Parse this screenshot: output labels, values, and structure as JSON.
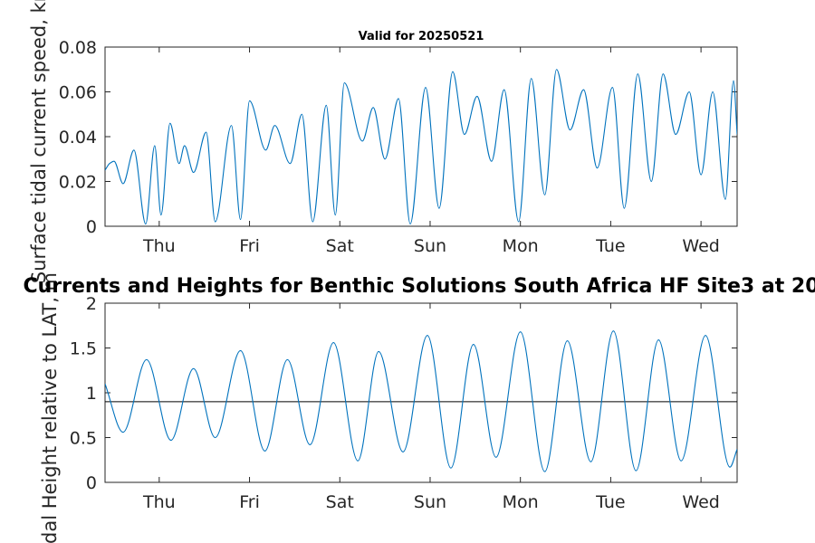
{
  "chart_data": [
    {
      "type": "line",
      "title": "Valid for 20250521",
      "ylabel": "Surface tidal current speed, kn",
      "xlabel": "",
      "xlim": [
        0,
        7
      ],
      "ylim": [
        0,
        0.08
      ],
      "grid": false,
      "xticks": [
        0.6,
        1.6,
        2.6,
        3.6,
        4.6,
        5.6,
        6.6
      ],
      "xtick_labels": [
        "Thu",
        "Fri",
        "Sat",
        "Sun",
        "Mon",
        "Tue",
        "Wed"
      ],
      "yticks": [
        0,
        0.02,
        0.04,
        0.06,
        0.08
      ],
      "ytick_labels": [
        "0",
        "0.02",
        "0.04",
        "0.06",
        "0.08"
      ],
      "line_color": "#0072BD",
      "series": [
        {
          "x": [
            0,
            0.05,
            0.1,
            0.2,
            0.32,
            0.45,
            0.55,
            0.62,
            0.72,
            0.82,
            0.88,
            0.98,
            1.12,
            1.22,
            1.4,
            1.5,
            1.6,
            1.78,
            1.88,
            2.05,
            2.18,
            2.3,
            2.45,
            2.55,
            2.65,
            2.85,
            2.97,
            3.1,
            3.25,
            3.38,
            3.55,
            3.7,
            3.85,
            3.98,
            4.12,
            4.28,
            4.42,
            4.58,
            4.72,
            4.87,
            5.0,
            5.15,
            5.3,
            5.45,
            5.62,
            5.75,
            5.9,
            6.05,
            6.18,
            6.32,
            6.47,
            6.6,
            6.73,
            6.87,
            6.96,
            7.0
          ],
          "y": [
            0.025,
            0.028,
            0.029,
            0.019,
            0.034,
            0.001,
            0.036,
            0.005,
            0.046,
            0.028,
            0.036,
            0.024,
            0.042,
            0.002,
            0.045,
            0.003,
            0.056,
            0.034,
            0.045,
            0.028,
            0.05,
            0.002,
            0.054,
            0.005,
            0.064,
            0.038,
            0.053,
            0.03,
            0.057,
            0.001,
            0.062,
            0.008,
            0.069,
            0.041,
            0.058,
            0.029,
            0.061,
            0.002,
            0.066,
            0.014,
            0.07,
            0.043,
            0.061,
            0.026,
            0.062,
            0.008,
            0.068,
            0.02,
            0.068,
            0.041,
            0.06,
            0.023,
            0.06,
            0.012,
            0.065,
            0.041
          ]
        }
      ]
    },
    {
      "type": "line",
      "title": "Currents and Heights for Benthic Solutions South Africa HF Site3 at 20",
      "ylabel": "Tidal Height relative to LAT, m",
      "xlabel": "",
      "xlim": [
        0,
        7
      ],
      "ylim": [
        0,
        2
      ],
      "grid": false,
      "reference_line": 0.9,
      "xticks": [
        0.6,
        1.6,
        2.6,
        3.6,
        4.6,
        5.6,
        6.6
      ],
      "xtick_labels": [
        "Thu",
        "Fri",
        "Sat",
        "Sun",
        "Mon",
        "Tue",
        "Wed"
      ],
      "yticks": [
        0,
        0.5,
        1,
        1.5,
        2
      ],
      "ytick_labels": [
        "0",
        "0.5",
        "1",
        "1.5",
        "2"
      ],
      "line_color": "#0072BD",
      "series": [
        {
          "x": [
            0,
            0.2,
            0.46,
            0.73,
            0.98,
            1.22,
            1.5,
            1.77,
            2.02,
            2.27,
            2.53,
            2.8,
            3.03,
            3.3,
            3.57,
            3.83,
            4.08,
            4.33,
            4.6,
            4.87,
            5.12,
            5.38,
            5.63,
            5.88,
            6.13,
            6.38,
            6.65,
            6.92,
            7.0
          ],
          "y": [
            1.1,
            0.56,
            1.37,
            0.47,
            1.27,
            0.5,
            1.47,
            0.35,
            1.37,
            0.42,
            1.56,
            0.24,
            1.46,
            0.34,
            1.64,
            0.16,
            1.54,
            0.28,
            1.68,
            0.12,
            1.58,
            0.23,
            1.69,
            0.13,
            1.59,
            0.24,
            1.64,
            0.17,
            0.37
          ]
        }
      ]
    }
  ]
}
